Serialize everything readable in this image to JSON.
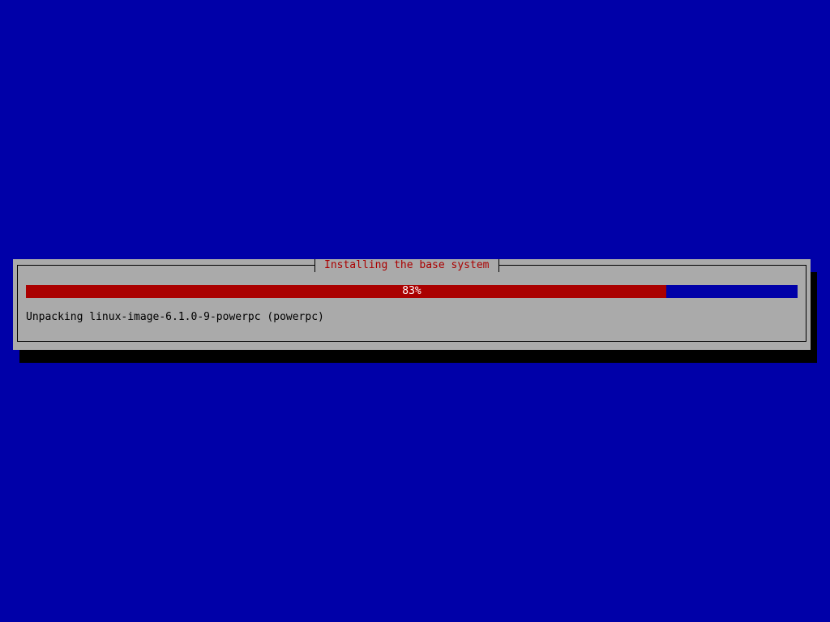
{
  "dialog": {
    "title": "Installing the base system",
    "progress_percent": 83,
    "progress_label": "83%",
    "status_text": "Unpacking linux-image-6.1.0-9-powerpc (powerpc)"
  },
  "colors": {
    "background": "#0000a8",
    "dialog": "#aaaaaa",
    "progress_fill": "#aa0000",
    "title_text": "#aa0000"
  }
}
